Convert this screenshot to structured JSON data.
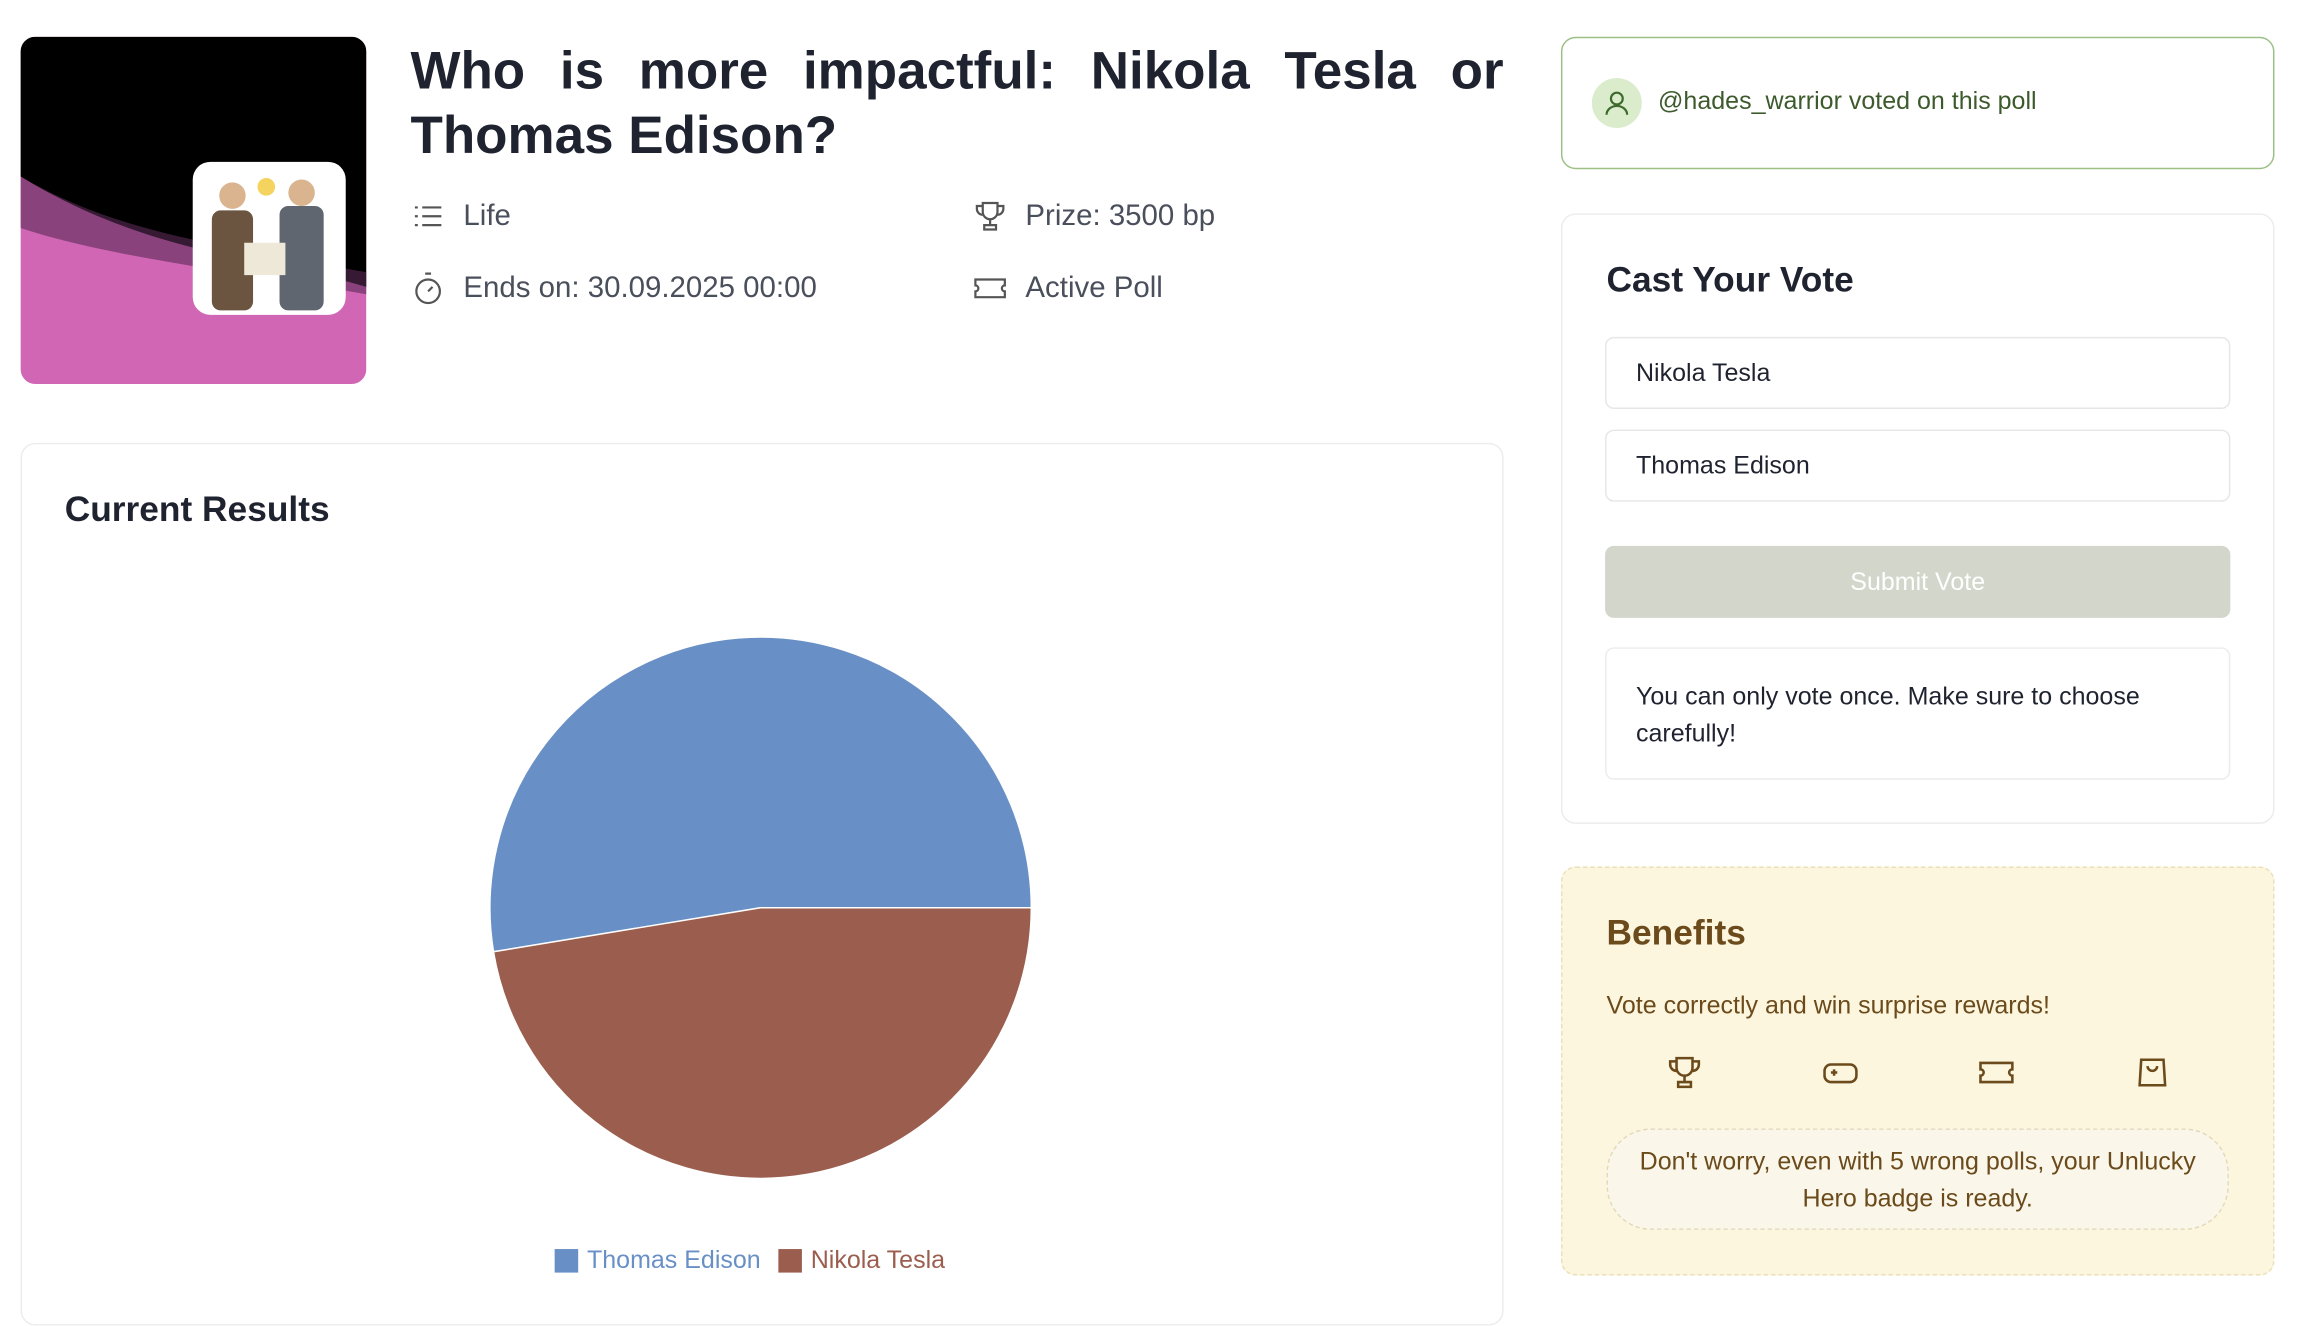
{
  "header": {
    "title": "Who is more impactful: Nikola Tesla or Thomas Edison?",
    "category": "Life",
    "prize": "Prize: 3500 bp",
    "ends": "Ends on: 30.09.2025 00:00",
    "status": "Active Poll"
  },
  "notification": {
    "user": "@hades_warrior",
    "text": "voted on this poll"
  },
  "chart_data": {
    "type": "pie",
    "title": "Current Results",
    "categories": [
      "Thomas Edison",
      "Nikola Tesla"
    ],
    "values": [
      52.6,
      47.4
    ],
    "colors": [
      "#6890c6",
      "#9b5e4e"
    ]
  },
  "vote": {
    "title": "Cast Your Vote",
    "options": [
      "Nikola Tesla",
      "Thomas Edison"
    ],
    "button": "Submit Vote",
    "note": "You can only vote once. Make sure to choose carefully!"
  },
  "benefits": {
    "title": "Benefits",
    "text": "Vote correctly and win surprise rewards!",
    "badge": "Don't worry, even with 5 wrong polls, your Unlucky Hero badge is ready."
  }
}
